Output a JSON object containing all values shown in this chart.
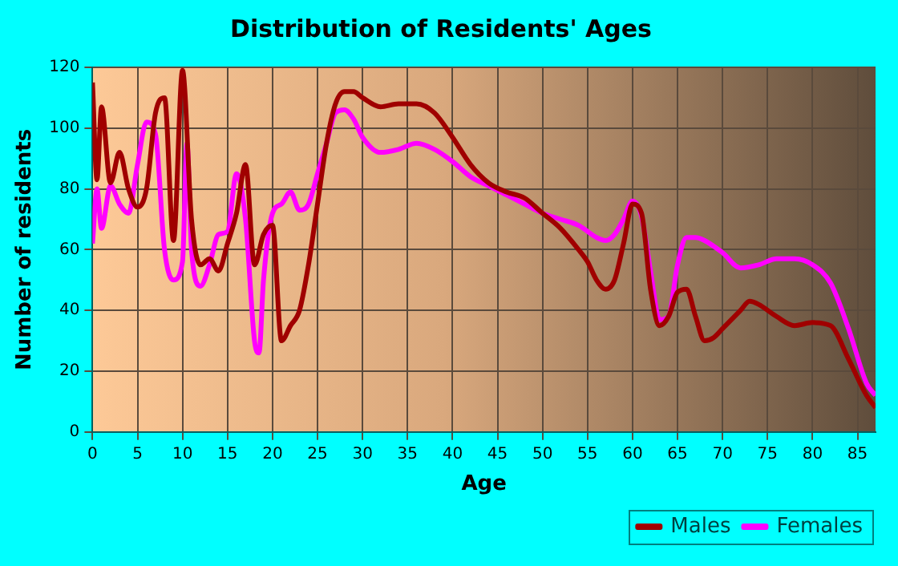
{
  "chart_data": {
    "type": "line",
    "title": "Distribution of Residents' Ages",
    "xlabel": "Age",
    "ylabel": "Number of residents",
    "xlim": [
      0,
      87
    ],
    "xticks": [
      0,
      5,
      10,
      15,
      20,
      25,
      30,
      35,
      40,
      45,
      50,
      55,
      60,
      65,
      70,
      75,
      80,
      85
    ],
    "ylim": [
      0,
      120
    ],
    "yticks": [
      0,
      20,
      40,
      60,
      80,
      100,
      120
    ],
    "grid": true,
    "legend": "bottom right",
    "marker": "none",
    "line_style": "solid",
    "series": [
      {
        "name": "Males",
        "color": "#a00000",
        "x": [
          0,
          0.5,
          1,
          2,
          3,
          4,
          5,
          6,
          7,
          8,
          9,
          10,
          11,
          12,
          13,
          14,
          15,
          16,
          17,
          18,
          19,
          20,
          21,
          22,
          23,
          24,
          25,
          26,
          27,
          28,
          29,
          30,
          32,
          34,
          36,
          38,
          40,
          42,
          44,
          46,
          48,
          50,
          52,
          54,
          55,
          56,
          57,
          58,
          59,
          60,
          61,
          62,
          63,
          64,
          65,
          66,
          67,
          68,
          69,
          70,
          72,
          73,
          74,
          76,
          78,
          80,
          82,
          84,
          86,
          87
        ],
        "values": [
          115,
          83,
          107,
          82,
          92,
          80,
          74,
          80,
          105,
          110,
          63,
          119,
          70,
          55,
          57,
          53,
          62,
          72,
          88,
          55,
          65,
          68,
          30,
          35,
          40,
          55,
          75,
          95,
          108,
          112,
          112,
          110,
          107,
          108,
          108,
          105,
          97,
          88,
          82,
          79,
          77,
          72,
          67,
          60,
          56,
          50,
          47,
          50,
          62,
          75,
          72,
          47,
          35,
          38,
          46,
          47,
          38,
          30,
          31,
          34,
          40,
          43,
          42,
          38,
          35,
          36,
          35,
          24,
          12,
          8
        ]
      },
      {
        "name": "Females",
        "color": "#ff00ff",
        "x": [
          0,
          0.5,
          1,
          2,
          3,
          4,
          5,
          6,
          7,
          8,
          9,
          10,
          10.5,
          11,
          12,
          13,
          14,
          15,
          16,
          17,
          18,
          18.5,
          19,
          20,
          21,
          22,
          23,
          24,
          25,
          26,
          27,
          28,
          29,
          30,
          32,
          34,
          36,
          38,
          40,
          42,
          44,
          46,
          48,
          50,
          52,
          54,
          56,
          57,
          58,
          59,
          60,
          61,
          62,
          63,
          64,
          65,
          66,
          67,
          68,
          70,
          72,
          74,
          76,
          78,
          80,
          82,
          84,
          86,
          87
        ],
        "values": [
          62,
          80,
          67,
          81,
          75,
          72,
          88,
          102,
          98,
          60,
          50,
          56,
          95,
          60,
          48,
          55,
          65,
          66,
          85,
          70,
          30,
          26,
          50,
          72,
          75,
          79,
          73,
          75,
          85,
          95,
          105,
          106,
          103,
          97,
          92,
          93,
          95,
          93,
          89,
          84,
          81,
          78,
          75,
          72,
          70,
          68,
          64,
          63,
          65,
          70,
          76,
          71,
          53,
          37,
          38,
          55,
          64,
          64,
          63,
          59,
          54,
          55,
          57,
          57,
          55,
          49,
          34,
          16,
          12
        ]
      }
    ]
  }
}
